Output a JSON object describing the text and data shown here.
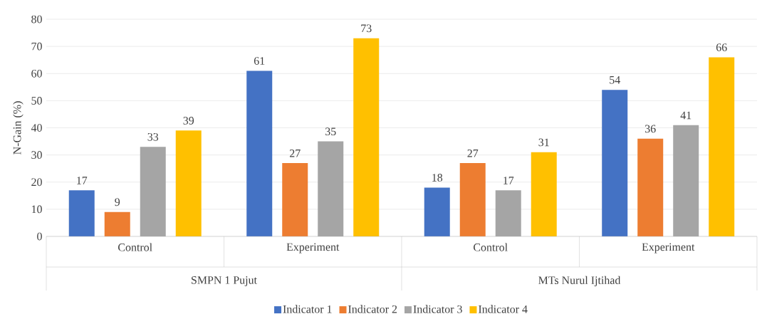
{
  "chart_data": {
    "type": "bar",
    "ylabel": "N-Gain (%)",
    "categories": [
      "Control",
      "Experiment",
      "Control",
      "Experiment"
    ],
    "annotations": [
      "SMPN 1 Pujut",
      "MTs Nurul Ijtihad"
    ],
    "series": [
      {
        "name": "Indicator 1",
        "color": "#4472c4",
        "values": [
          17,
          61,
          18,
          54
        ]
      },
      {
        "name": "Indicator 2",
        "color": "#ed7d31",
        "values": [
          9,
          27,
          27,
          36
        ]
      },
      {
        "name": "Indicator 3",
        "color": "#a5a5a5",
        "values": [
          33,
          35,
          17,
          41
        ]
      },
      {
        "name": "Indicator 4",
        "color": "#ffc000",
        "values": [
          39,
          73,
          31,
          66
        ]
      }
    ],
    "ylim": [
      0,
      80
    ],
    "yticks": [
      0,
      10,
      20,
      30,
      40,
      50,
      60,
      70,
      80
    ],
    "grid": "y",
    "legend": "bottom",
    "data_labels": true
  }
}
